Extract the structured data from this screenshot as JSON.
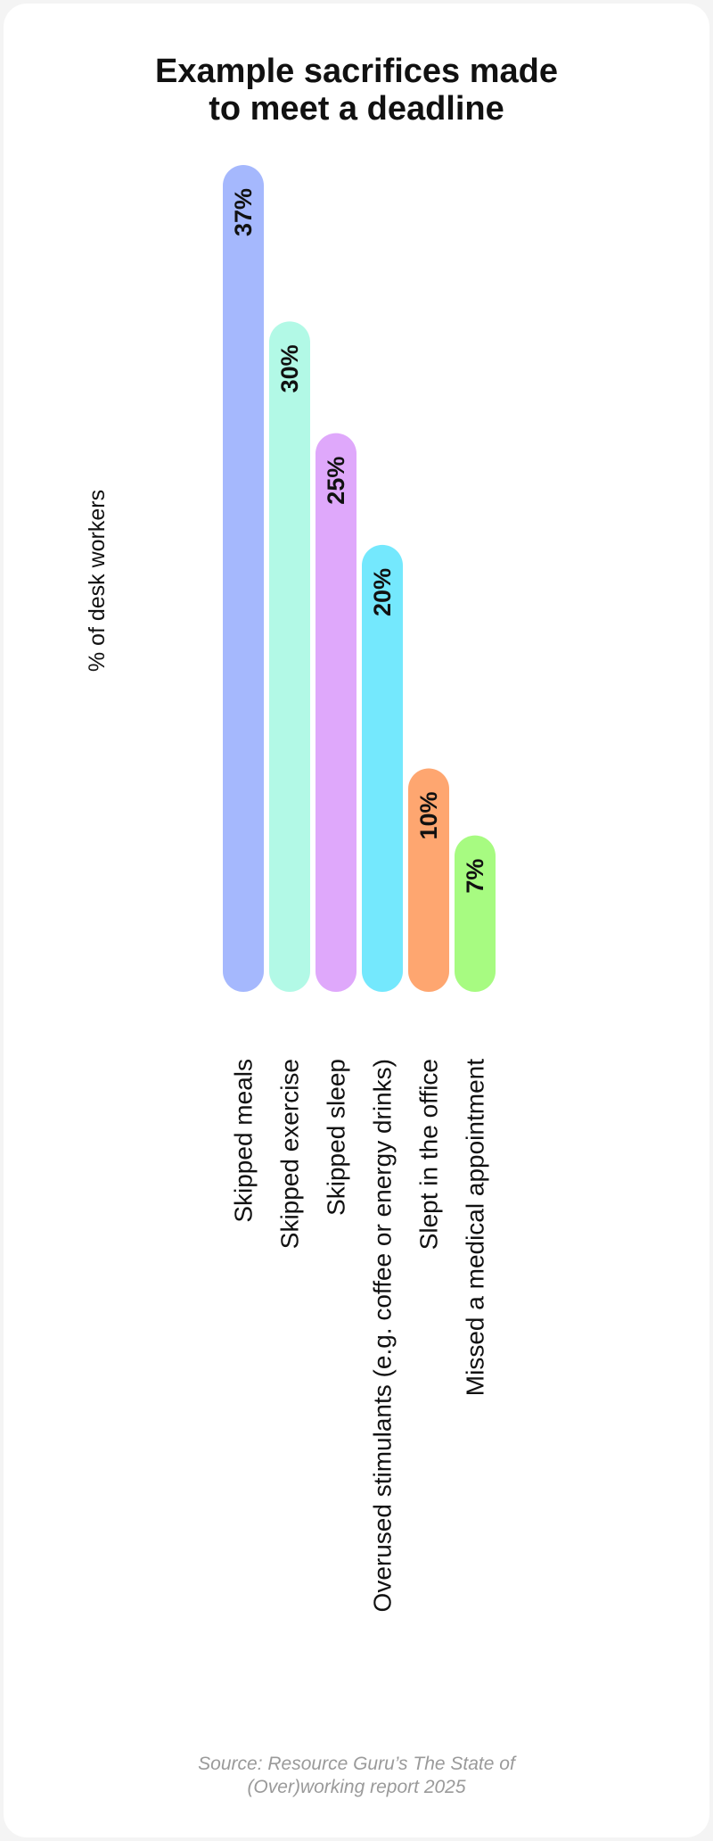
{
  "chart_data": {
    "type": "bar",
    "orientation": "vertical",
    "title_lines": [
      "Example sacrifices made",
      "to meet a deadline"
    ],
    "ylabel": "% of desk workers",
    "value_suffix": "%",
    "ylim": [
      0,
      37
    ],
    "grid": false,
    "categories": [
      "Skipped meals",
      "Skipped exercise",
      "Skipped sleep",
      "Overused stimulants (e.g. coffee or energy drinks)",
      "Slept in the office",
      "Missed a medical appointment"
    ],
    "values": [
      37,
      30,
      25,
      20,
      10,
      7
    ],
    "colors": [
      "#a5b8fd",
      "#b2f9e6",
      "#dfa8fb",
      "#74e8fd",
      "#fea670",
      "#a7fb81"
    ]
  },
  "source_lines": [
    "Source: Resource Guru’s The State of",
    "(Over)working report 2025"
  ]
}
